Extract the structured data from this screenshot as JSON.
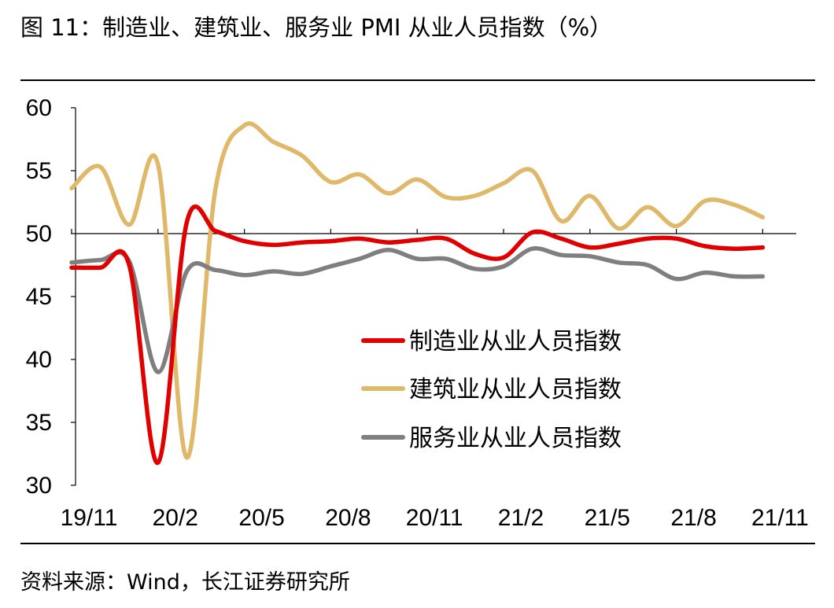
{
  "header": {
    "title": "图  11：制造业、建筑业、服务业 PMI 从业人员指数（%）"
  },
  "footer": {
    "source": "资料来源：Wind，长江证券研究所"
  },
  "chart_data": {
    "type": "line",
    "title": "图  11：制造业、建筑业、服务业 PMI 从业人员指数（%）",
    "xlabel": "",
    "ylabel": "",
    "ylim": [
      30,
      60
    ],
    "yticks": [
      30,
      35,
      40,
      45,
      50,
      55,
      60
    ],
    "baseline": 50,
    "x_tick_labels": [
      "19/11",
      "20/2",
      "20/5",
      "20/8",
      "20/11",
      "21/2",
      "21/5",
      "21/8",
      "21/11"
    ],
    "x": [
      "19/11",
      "19/12",
      "20/1",
      "20/2",
      "20/3",
      "20/4",
      "20/5",
      "20/6",
      "20/7",
      "20/8",
      "20/9",
      "20/10",
      "20/11",
      "20/12",
      "21/1",
      "21/2",
      "21/3",
      "21/4",
      "21/5",
      "21/6",
      "21/7",
      "21/8",
      "21/9",
      "21/10",
      "21/11"
    ],
    "legend_position": "center-right",
    "series": [
      {
        "name": "制造业从业人员指数",
        "color": "#e00000",
        "values": [
          47.3,
          47.3,
          47.5,
          31.8,
          50.9,
          50.2,
          49.4,
          49.1,
          49.3,
          49.4,
          49.6,
          49.3,
          49.5,
          49.6,
          48.4,
          48.1,
          50.1,
          49.6,
          48.9,
          49.2,
          49.6,
          49.6,
          49.0,
          48.8,
          48.9
        ]
      },
      {
        "name": "建筑业从业人员指数",
        "color": "#e0b86a",
        "values": [
          53.6,
          55.3,
          50.7,
          55.5,
          32.2,
          53.6,
          58.6,
          57.3,
          56.2,
          54.1,
          54.7,
          53.2,
          54.3,
          52.9,
          53.0,
          54.0,
          55.0,
          51.0,
          53.0,
          50.4,
          52.1,
          50.6,
          52.6,
          52.3,
          51.3
        ]
      },
      {
        "name": "服务业从业人员指数",
        "color": "#7f7f7f",
        "values": [
          47.7,
          47.9,
          47.8,
          39.0,
          47.0,
          47.1,
          46.7,
          47.0,
          46.8,
          47.4,
          48.0,
          48.7,
          48.0,
          48.0,
          47.2,
          47.4,
          48.8,
          48.3,
          48.2,
          47.7,
          47.5,
          46.4,
          46.9,
          46.6,
          46.6
        ]
      }
    ]
  }
}
